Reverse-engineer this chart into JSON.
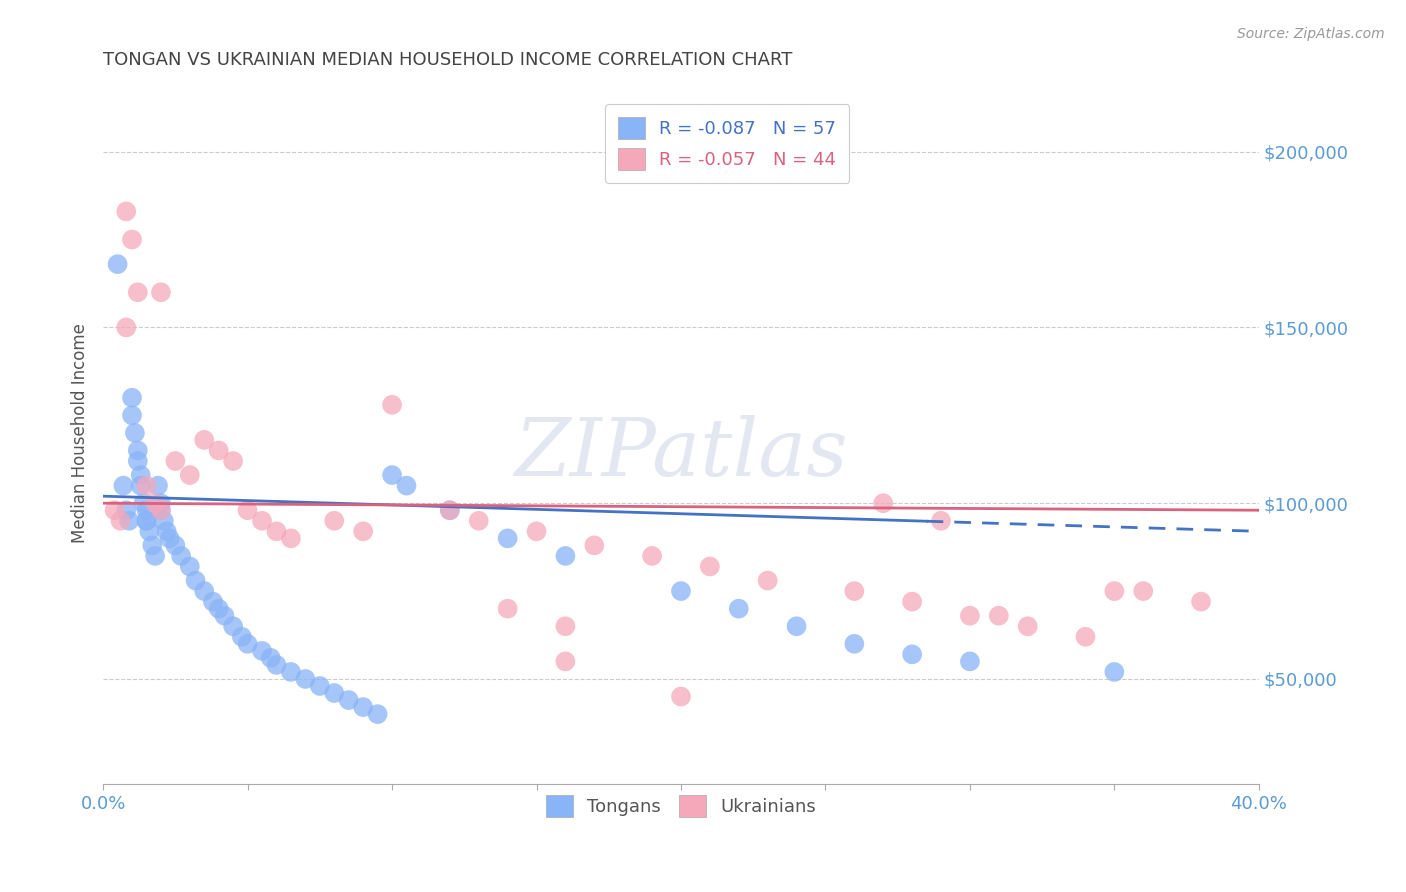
{
  "title": "TONGAN VS UKRAINIAN MEDIAN HOUSEHOLD INCOME CORRELATION CHART",
  "source": "Source: ZipAtlas.com",
  "ylabel": "Median Household Income",
  "xlim": [
    0.0,
    0.4
  ],
  "ylim": [
    20000,
    220000
  ],
  "xticks": [
    0.0,
    0.05,
    0.1,
    0.15,
    0.2,
    0.25,
    0.3,
    0.35,
    0.4
  ],
  "xticklabels_shown": {
    "0.0": "0.0%",
    "0.40": "40.0%"
  },
  "yticks_right": [
    50000,
    100000,
    150000,
    200000
  ],
  "ytick_labels_right": [
    "$50,000",
    "$100,000",
    "$150,000",
    "$200,000"
  ],
  "tongan_color": "#89b4f7",
  "ukrainian_color": "#f5a8ba",
  "trend_tongan_color": "#4472c4",
  "trend_ukrainian_color": "#d9627e",
  "trend_tongan_intercept": 102000,
  "trend_tongan_slope": -25000,
  "trend_tongan_solid_end": 0.285,
  "trend_ukrainian_intercept": 100000,
  "trend_ukrainian_slope": -5000,
  "background_color": "#ffffff",
  "grid_color": "#cccccc",
  "title_color": "#444444",
  "right_tick_color": "#5b9bd5",
  "watermark": "ZIPatlas",
  "legend_line1": "R = -0.087   N = 57",
  "legend_line2": "R = -0.057   N = 44",
  "legend_color1": "#4472c4",
  "legend_color2": "#d9627e",
  "tongans_x": [
    0.005,
    0.007,
    0.008,
    0.009,
    0.01,
    0.01,
    0.011,
    0.012,
    0.012,
    0.013,
    0.013,
    0.014,
    0.015,
    0.015,
    0.016,
    0.017,
    0.018,
    0.019,
    0.02,
    0.02,
    0.021,
    0.022,
    0.023,
    0.025,
    0.027,
    0.03,
    0.032,
    0.035,
    0.038,
    0.04,
    0.042,
    0.045,
    0.048,
    0.05,
    0.055,
    0.058,
    0.06,
    0.065,
    0.07,
    0.075,
    0.08,
    0.085,
    0.09,
    0.095,
    0.1,
    0.105,
    0.12,
    0.14,
    0.16,
    0.2,
    0.22,
    0.24,
    0.26,
    0.28,
    0.3,
    0.35,
    0.015
  ],
  "tongans_y": [
    168000,
    105000,
    98000,
    95000,
    130000,
    125000,
    120000,
    115000,
    112000,
    108000,
    105000,
    100000,
    98000,
    95000,
    92000,
    88000,
    85000,
    105000,
    100000,
    98000,
    95000,
    92000,
    90000,
    88000,
    85000,
    82000,
    78000,
    75000,
    72000,
    70000,
    68000,
    65000,
    62000,
    60000,
    58000,
    56000,
    54000,
    52000,
    50000,
    48000,
    46000,
    44000,
    42000,
    40000,
    108000,
    105000,
    98000,
    90000,
    85000,
    75000,
    70000,
    65000,
    60000,
    57000,
    55000,
    52000,
    95000
  ],
  "ukrainians_x": [
    0.004,
    0.006,
    0.008,
    0.01,
    0.012,
    0.015,
    0.018,
    0.02,
    0.025,
    0.03,
    0.035,
    0.04,
    0.045,
    0.05,
    0.055,
    0.06,
    0.065,
    0.08,
    0.09,
    0.1,
    0.12,
    0.13,
    0.15,
    0.17,
    0.19,
    0.21,
    0.23,
    0.26,
    0.28,
    0.3,
    0.32,
    0.34,
    0.36,
    0.38,
    0.2,
    0.14,
    0.16,
    0.27,
    0.29,
    0.02,
    0.16,
    0.31,
    0.35,
    0.008
  ],
  "ukrainians_y": [
    98000,
    95000,
    183000,
    175000,
    160000,
    105000,
    100000,
    98000,
    112000,
    108000,
    118000,
    115000,
    112000,
    98000,
    95000,
    92000,
    90000,
    95000,
    92000,
    128000,
    98000,
    95000,
    92000,
    88000,
    85000,
    82000,
    78000,
    75000,
    72000,
    68000,
    65000,
    62000,
    75000,
    72000,
    45000,
    70000,
    65000,
    100000,
    95000,
    160000,
    55000,
    68000,
    75000,
    150000
  ]
}
